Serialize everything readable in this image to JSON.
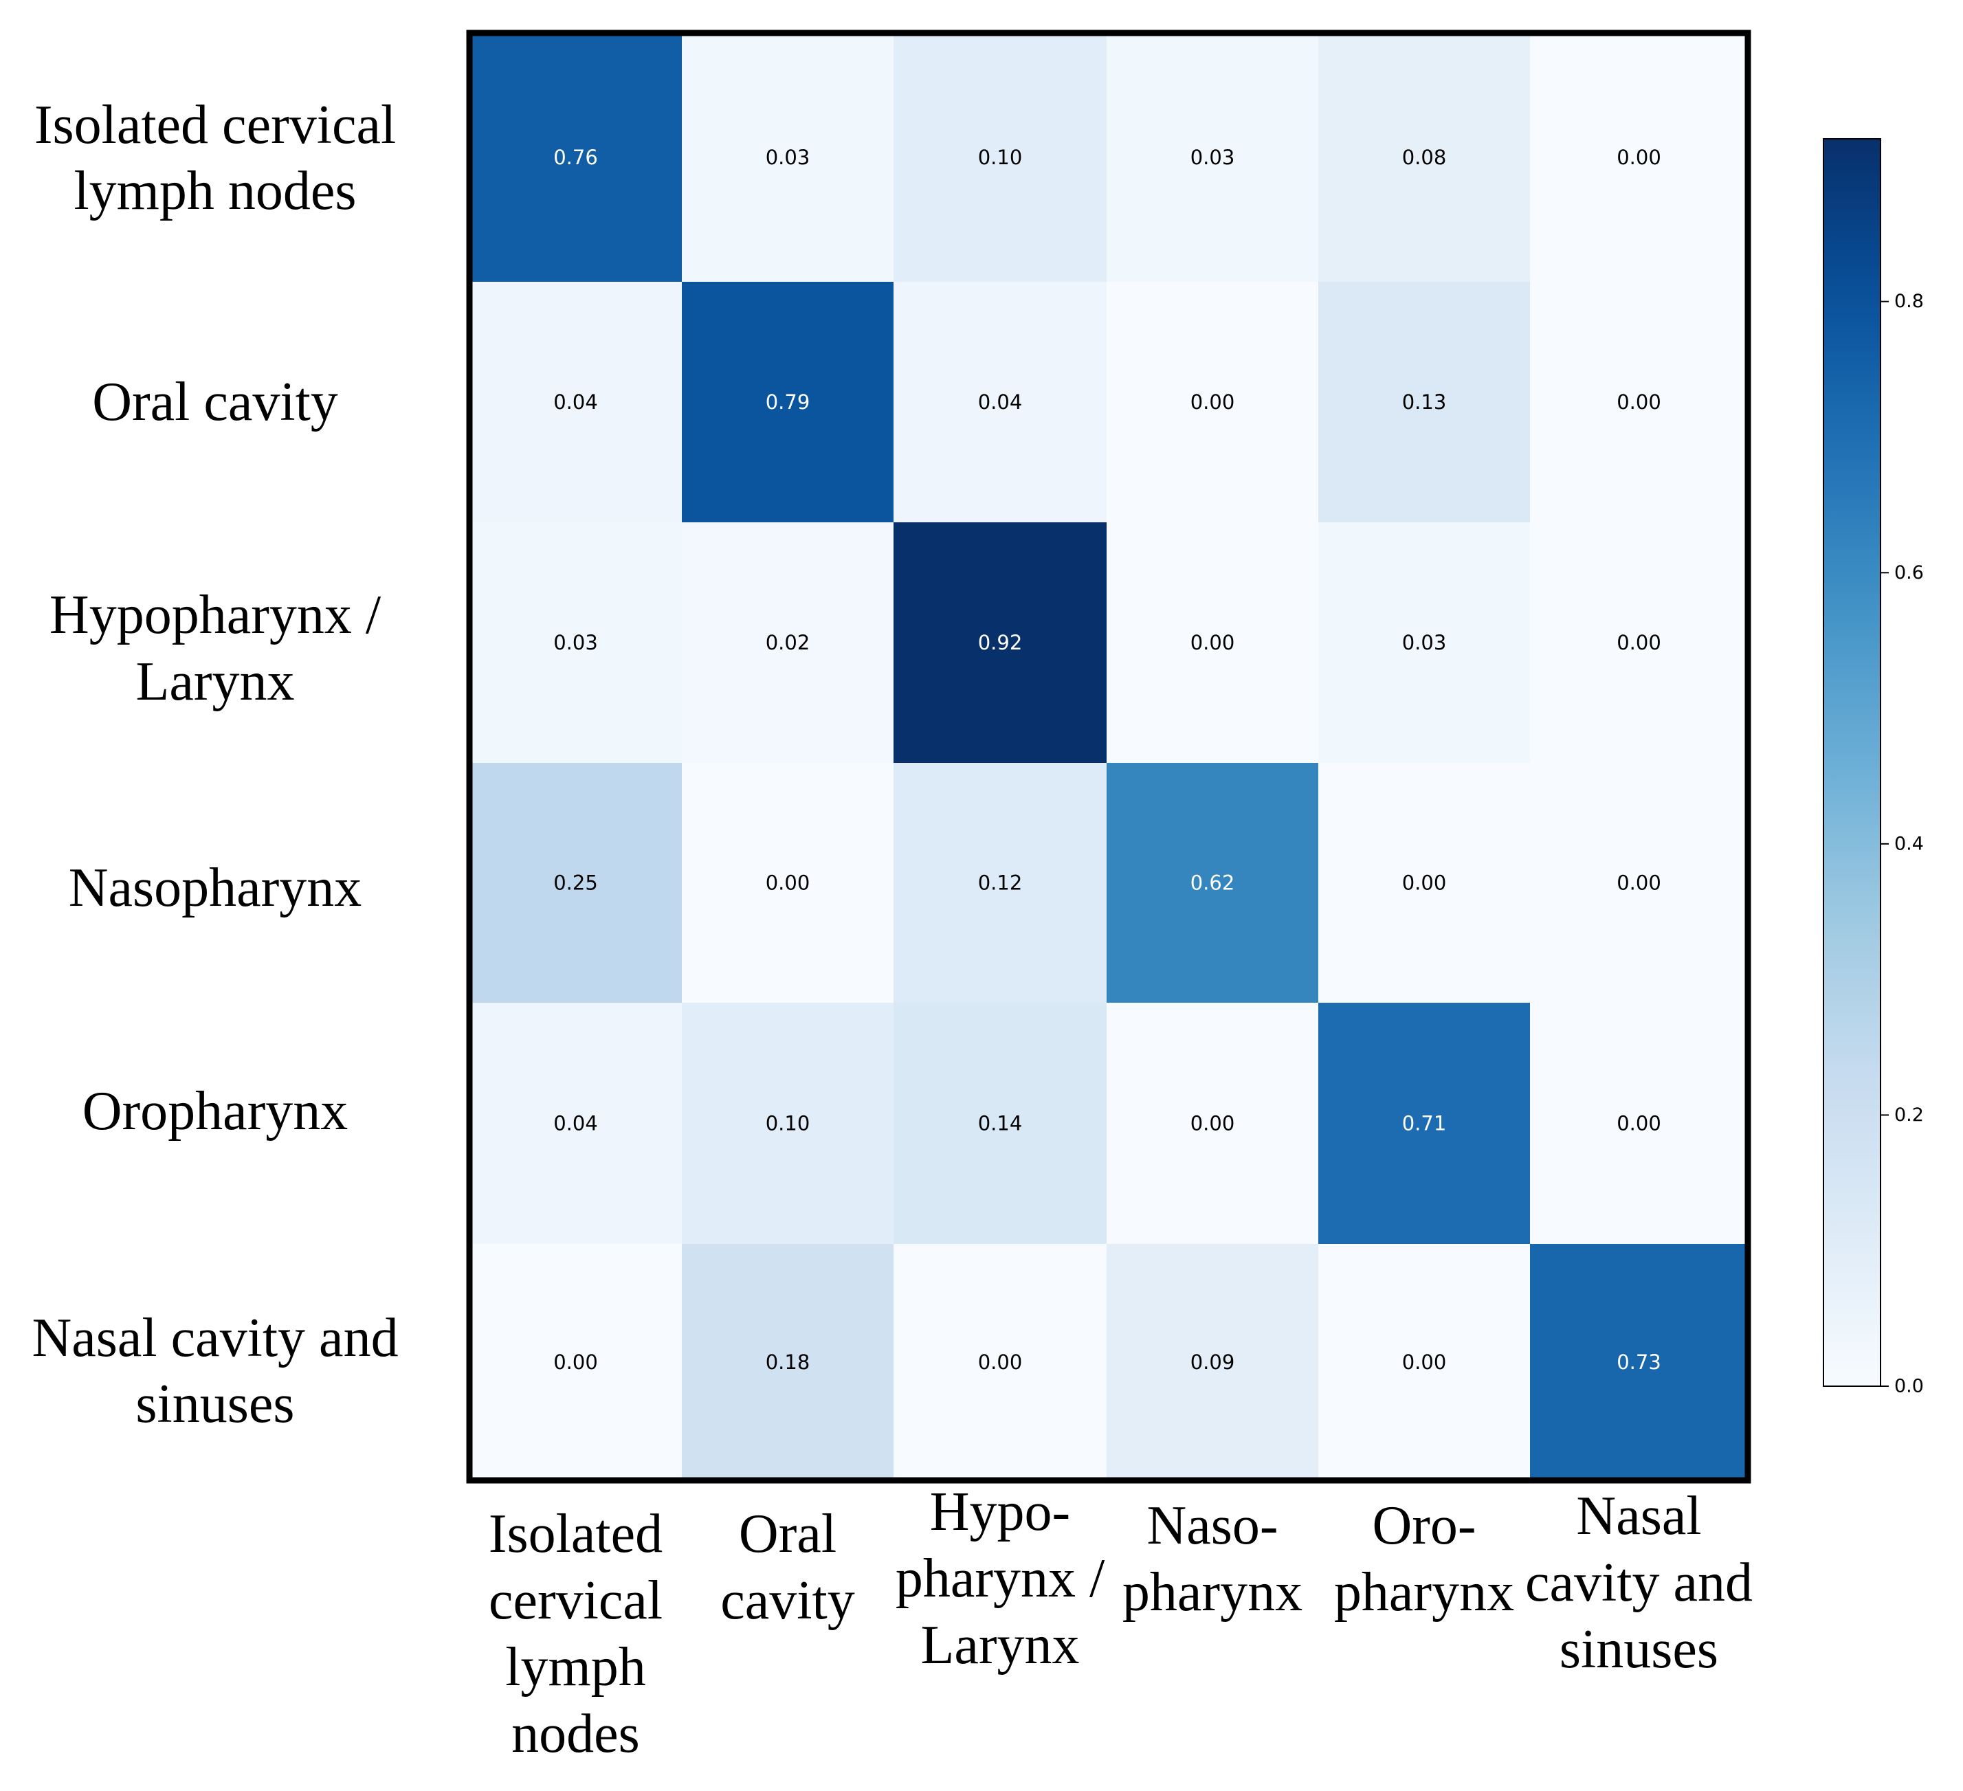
{
  "chart_data": {
    "type": "heatmap",
    "title": "",
    "xlabel": "",
    "ylabel": "",
    "row_labels": [
      [
        "Isolated cervical",
        "lymph nodes"
      ],
      [
        "Oral cavity"
      ],
      [
        "Hypopharynx /",
        "Larynx"
      ],
      [
        "Nasopharynx"
      ],
      [
        "Oropharynx"
      ],
      [
        "Nasal cavity and",
        "sinuses"
      ]
    ],
    "col_labels": [
      [
        "Isolated",
        "cervical",
        "lymph",
        "nodes"
      ],
      [
        "Oral",
        "cavity"
      ],
      [
        "Hypo-",
        "pharynx /",
        "Larynx"
      ],
      [
        "Naso-",
        "pharynx"
      ],
      [
        "Oro-",
        "pharynx"
      ],
      [
        "Nasal",
        "cavity and",
        "sinuses"
      ]
    ],
    "values": [
      [
        0.76,
        0.03,
        0.1,
        0.03,
        0.08,
        0.0
      ],
      [
        0.04,
        0.79,
        0.04,
        0.0,
        0.13,
        0.0
      ],
      [
        0.03,
        0.02,
        0.92,
        0.0,
        0.03,
        0.0
      ],
      [
        0.25,
        0.0,
        0.12,
        0.62,
        0.0,
        0.0
      ],
      [
        0.04,
        0.1,
        0.14,
        0.0,
        0.71,
        0.0
      ],
      [
        0.0,
        0.18,
        0.0,
        0.09,
        0.0,
        0.73
      ]
    ],
    "value_labels": [
      [
        "0.76",
        "0.03",
        "0.10",
        "0.03",
        "0.08",
        "0.00"
      ],
      [
        "0.04",
        "0.79",
        "0.04",
        "0.00",
        "0.13",
        "0.00"
      ],
      [
        "0.03",
        "0.02",
        "0.92",
        "0.00",
        "0.03",
        "0.00"
      ],
      [
        "0.25",
        "0.00",
        "0.12",
        "0.62",
        "0.00",
        "0.00"
      ],
      [
        "0.04",
        "0.10",
        "0.14",
        "0.00",
        "0.71",
        "0.00"
      ],
      [
        "0.00",
        "0.18",
        "0.00",
        "0.09",
        "0.00",
        "0.73"
      ]
    ],
    "colorbar": {
      "colormap": "Blues",
      "range": [
        0.0,
        0.92
      ],
      "ticks": [
        0.0,
        0.2,
        0.4,
        0.6,
        0.8
      ],
      "tick_labels": [
        "0.0",
        "0.2",
        "0.4",
        "0.6",
        "0.8"
      ]
    }
  }
}
